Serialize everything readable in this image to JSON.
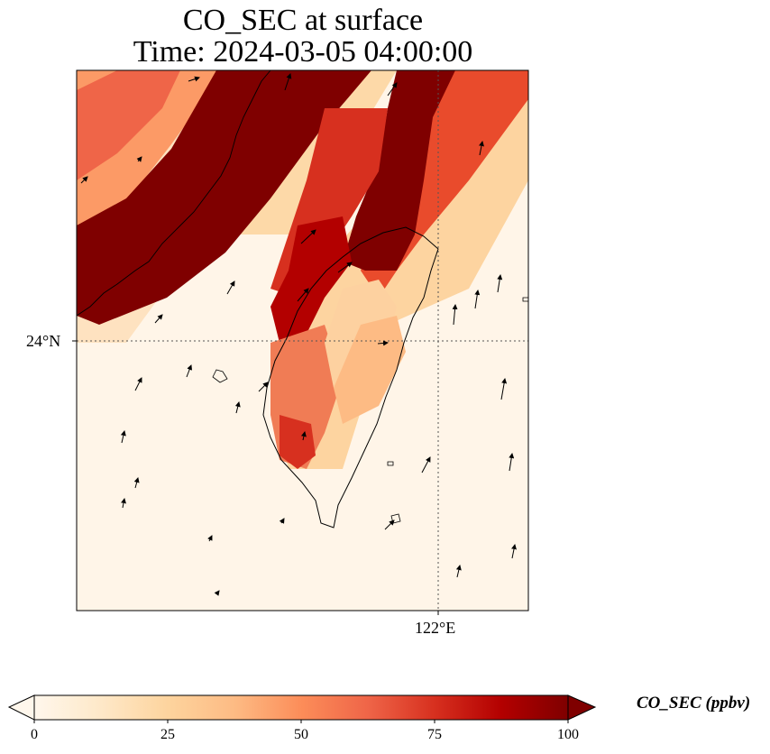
{
  "title": {
    "line1": "CO_SEC at surface",
    "line2": "Time: 2024-03-05 04:00:00"
  },
  "map": {
    "variable": "CO_SEC",
    "level": "surface",
    "lat_label": "24°N",
    "lon_label": "122°E",
    "gridlines": "dotted",
    "colormap": "OrRd",
    "extent_approx": {
      "lon": [
        118.0,
        123.0
      ],
      "lat": [
        21.0,
        27.0
      ]
    },
    "plume_bands": "two diagonal high-concentration bands (>100 ppbv) running SW→NE over the Taiwan Strait and northern Taiwan",
    "wind_vectors": "black arrows, mostly northward / north-eastward"
  },
  "colorbar": {
    "label": "CO_SEC (ppbv)",
    "ticks": [
      "0",
      "25",
      "50",
      "75",
      "100"
    ],
    "min": 0,
    "max": 100,
    "extend": "both",
    "colors": [
      "#fff7ec",
      "#fee8c8",
      "#fdd49e",
      "#fdbb84",
      "#fc8d59",
      "#ef6548",
      "#d7301f",
      "#b30000",
      "#7f0000"
    ]
  }
}
